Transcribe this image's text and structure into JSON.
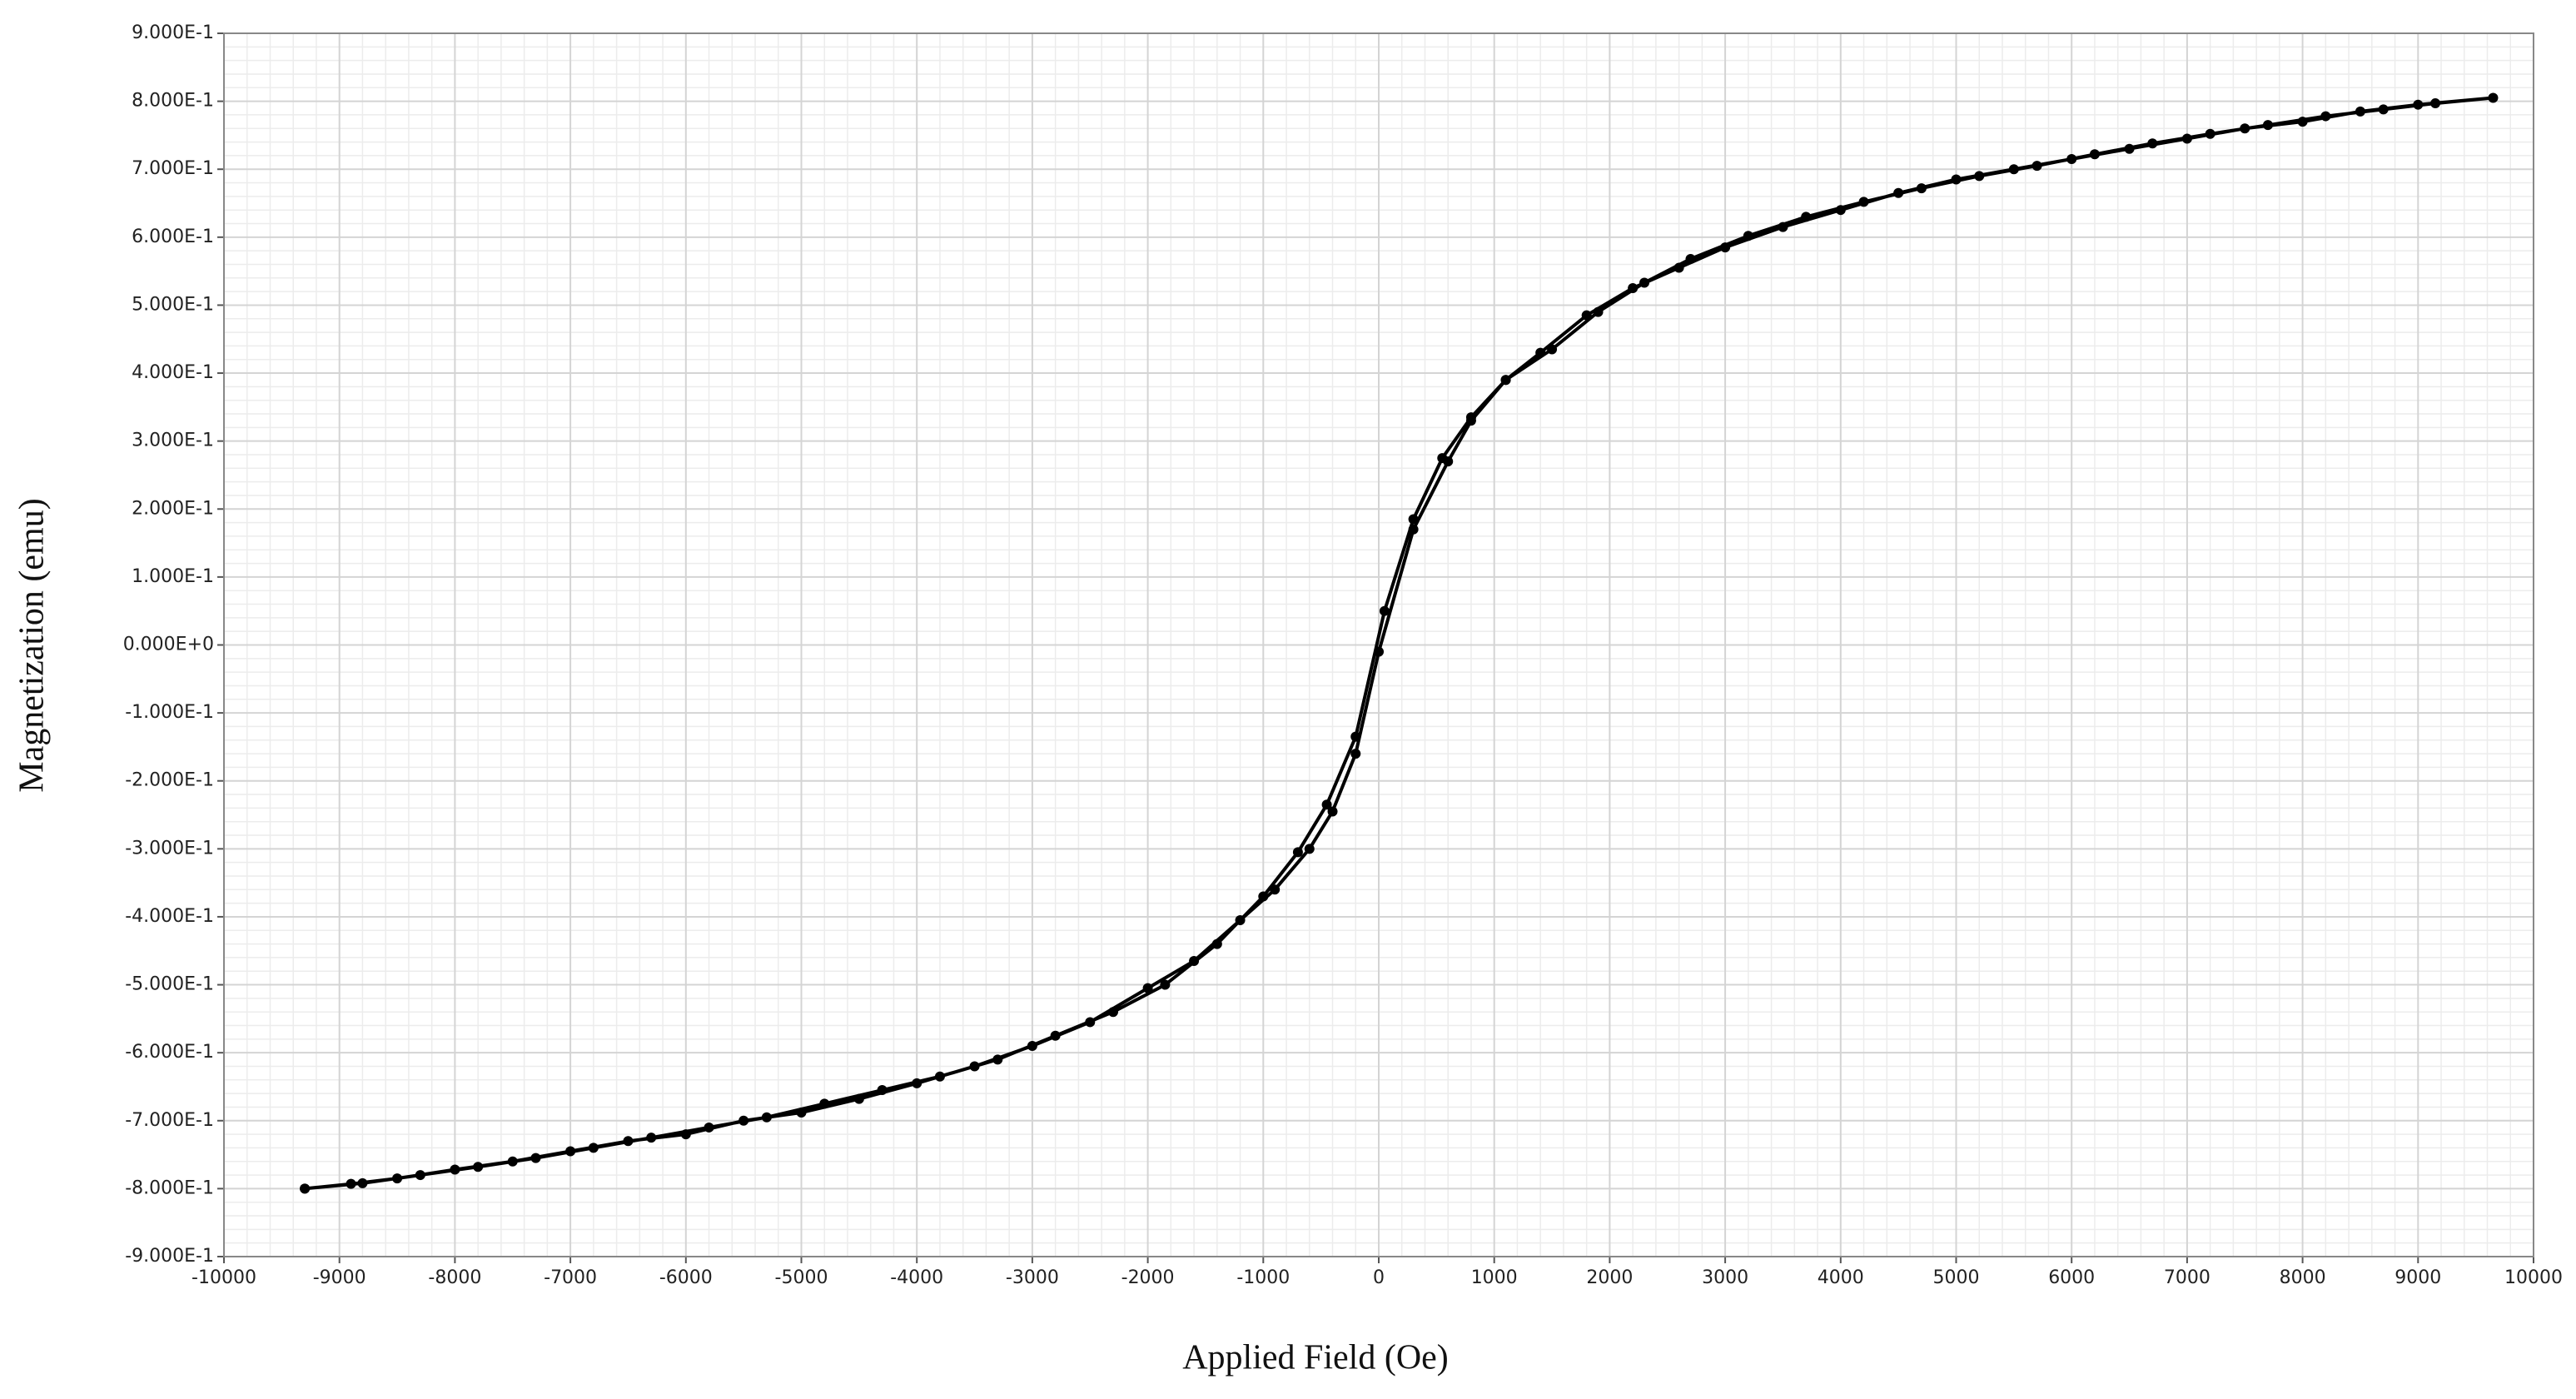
{
  "chart_data": {
    "type": "line",
    "x_label": "Applied Field (Oe)",
    "y_label": "Magnetization (emu)",
    "color": "#000000",
    "markers": true,
    "grid": true,
    "minor_grid": true,
    "x": [
      -9300,
      -8900,
      -8500,
      -8000,
      -7500,
      -7000,
      -6500,
      -6000,
      -5500,
      -5000,
      -4500,
      -4000,
      -3500,
      -3000,
      -2500,
      -2000,
      -1600,
      -1200,
      -900,
      -600,
      -400,
      -200,
      0,
      300,
      600,
      800,
      1100,
      1400,
      1800,
      2200,
      2600,
      3000,
      3500,
      4000,
      4500,
      5000,
      5500,
      6000,
      6500,
      7000,
      7500,
      8000,
      8500,
      9000,
      9650,
      9150,
      8700,
      8200,
      7700,
      7200,
      6700,
      6200,
      5700,
      5200,
      4700,
      4200,
      3700,
      3200,
      2700,
      2300,
      1900,
      1500,
      1100,
      800,
      550,
      300,
      50,
      -200,
      -450,
      -700,
      -1000,
      -1400,
      -1850,
      -2300,
      -2800,
      -3300,
      -3800,
      -4300,
      -4800,
      -5300,
      -5800,
      -6300,
      -6800,
      -7300,
      -7800,
      -8300,
      -8800,
      -9300
    ],
    "values": [
      -0.8,
      -0.793,
      -0.785,
      -0.772,
      -0.76,
      -0.745,
      -0.73,
      -0.72,
      -0.7,
      -0.688,
      -0.668,
      -0.645,
      -0.62,
      -0.59,
      -0.555,
      -0.505,
      -0.465,
      -0.405,
      -0.36,
      -0.3,
      -0.245,
      -0.16,
      -0.01,
      0.17,
      0.27,
      0.33,
      0.39,
      0.43,
      0.485,
      0.525,
      0.555,
      0.585,
      0.615,
      0.64,
      0.665,
      0.685,
      0.7,
      0.715,
      0.73,
      0.745,
      0.76,
      0.77,
      0.785,
      0.795,
      0.805,
      0.797,
      0.788,
      0.778,
      0.765,
      0.752,
      0.738,
      0.722,
      0.705,
      0.69,
      0.672,
      0.652,
      0.63,
      0.602,
      0.568,
      0.533,
      0.49,
      0.435,
      0.39,
      0.335,
      0.275,
      0.185,
      0.05,
      -0.135,
      -0.235,
      -0.305,
      -0.37,
      -0.44,
      -0.5,
      -0.54,
      -0.575,
      -0.61,
      -0.635,
      -0.655,
      -0.675,
      -0.695,
      -0.71,
      -0.725,
      -0.74,
      -0.755,
      -0.768,
      -0.78,
      -0.792,
      -0.8
    ],
    "xlim": [
      -10000,
      10000
    ],
    "xticks": [
      -10000,
      -9000,
      -8000,
      -7000,
      -6000,
      -5000,
      -4000,
      -3000,
      -2000,
      -1000,
      0,
      1000,
      2000,
      3000,
      4000,
      5000,
      6000,
      7000,
      8000,
      9000,
      10000
    ],
    "ylim": [
      -0.9,
      0.9
    ],
    "yticks": [
      {
        "value": -0.9,
        "label": "-9.000E-1"
      },
      {
        "value": -0.8,
        "label": "-8.000E-1"
      },
      {
        "value": -0.7,
        "label": "-7.000E-1"
      },
      {
        "value": -0.6,
        "label": "-6.000E-1"
      },
      {
        "value": -0.5,
        "label": "-5.000E-1"
      },
      {
        "value": -0.4,
        "label": "-4.000E-1"
      },
      {
        "value": -0.3,
        "label": "-3.000E-1"
      },
      {
        "value": -0.2,
        "label": "-2.000E-1"
      },
      {
        "value": -0.1,
        "label": "-1.000E-1"
      },
      {
        "value": 0,
        "label": "0.000E+0"
      },
      {
        "value": 0.1,
        "label": "1.000E-1"
      },
      {
        "value": 0.2,
        "label": "2.000E-1"
      },
      {
        "value": 0.3,
        "label": "3.000E-1"
      },
      {
        "value": 0.4,
        "label": "4.000E-1"
      },
      {
        "value": 0.5,
        "label": "5.000E-1"
      },
      {
        "value": 0.6,
        "label": "6.000E-1"
      },
      {
        "value": 0.7,
        "label": "7.000E-1"
      },
      {
        "value": 0.8,
        "label": "8.000E-1"
      },
      {
        "value": 0.9,
        "label": "9.000E-1"
      }
    ]
  }
}
